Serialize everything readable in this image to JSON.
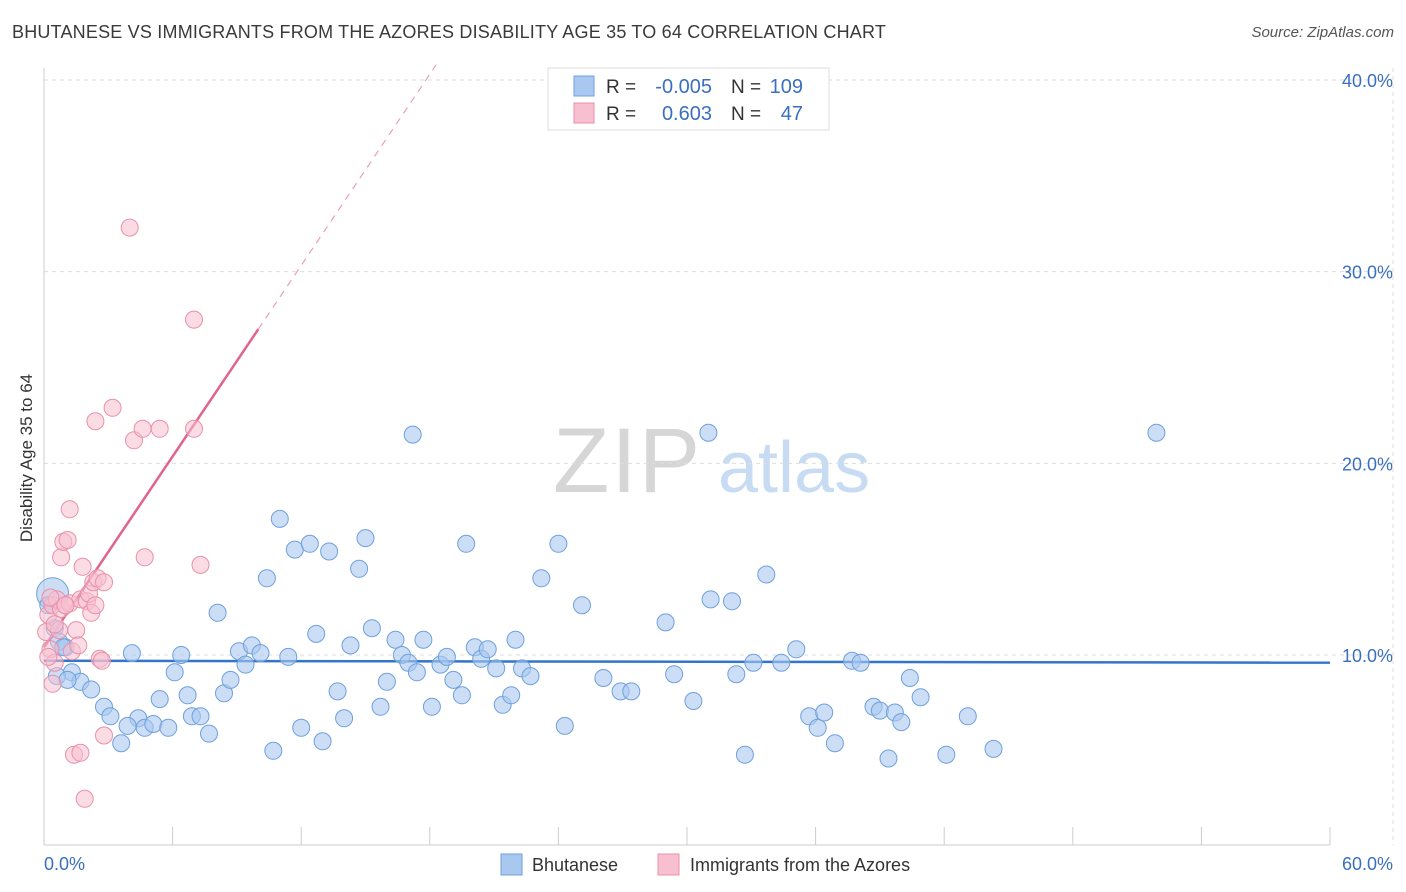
{
  "chart_data": {
    "type": "scatter",
    "title": "BHUTANESE VS IMMIGRANTS FROM THE AZORES DISABILITY AGE 35 TO 64 CORRELATION CHART",
    "source": "Source: ZipAtlas.com",
    "xlabel": "",
    "ylabel": "Disability Age 35 to 64",
    "xlim": [
      0,
      60
    ],
    "ylim": [
      0,
      42
    ],
    "x_tick_labels": [
      "0.0%",
      "60.0%"
    ],
    "y_ticks": [
      10,
      20,
      30,
      40
    ],
    "y_tick_labels": [
      "10.0%",
      "20.0%",
      "30.0%",
      "40.0%"
    ],
    "grid": true,
    "watermark": "ZIPatlas",
    "legend": {
      "position": "top-center",
      "rows": [
        {
          "r_label": "R =",
          "r_value": "-0.005",
          "n_label": "N =",
          "n_value": "109"
        },
        {
          "r_label": "R =",
          "r_value": "0.603",
          "n_label": "N =",
          "n_value": "47"
        }
      ]
    },
    "bottom_legend": [
      "Bhutanese",
      "Immigrants from the Azores"
    ],
    "colors": {
      "bhutanese_fill": "#a9c8f0",
      "bhutanese_stroke": "#6fa0dc",
      "bhutanese_line": "#3375c8",
      "azores_fill": "#f7bfd0",
      "azores_stroke": "#e890aa",
      "azores_line": "#e0648c",
      "tick_label": "#3a6fc0",
      "grid": "#dddddd"
    },
    "series": [
      {
        "name": "Bhutanese",
        "r": -0.005,
        "n": 109,
        "trend": {
          "x": [
            0,
            60
          ],
          "y": [
            9.7,
            9.6
          ]
        },
        "points": [
          [
            0.4,
            13.2
          ],
          [
            0.5,
            11.4
          ],
          [
            0.7,
            10.7
          ],
          [
            1.0,
            10.4
          ],
          [
            1.3,
            9.1
          ],
          [
            1.7,
            8.6
          ],
          [
            2.2,
            8.2
          ],
          [
            2.8,
            7.3
          ],
          [
            3.1,
            6.8
          ],
          [
            3.6,
            5.4
          ],
          [
            4.1,
            10.1
          ],
          [
            4.4,
            6.7
          ],
          [
            4.7,
            6.2
          ],
          [
            5.1,
            6.4
          ],
          [
            5.4,
            7.7
          ],
          [
            5.8,
            6.2
          ],
          [
            6.1,
            9.1
          ],
          [
            6.4,
            10.0
          ],
          [
            6.7,
            7.9
          ],
          [
            6.9,
            6.8
          ],
          [
            7.3,
            6.8
          ],
          [
            7.7,
            5.9
          ],
          [
            8.1,
            12.2
          ],
          [
            8.4,
            8.0
          ],
          [
            8.7,
            8.7
          ],
          [
            9.1,
            10.2
          ],
          [
            9.4,
            9.5
          ],
          [
            9.7,
            10.5
          ],
          [
            10.1,
            10.1
          ],
          [
            10.4,
            14.0
          ],
          [
            10.7,
            5.0
          ],
          [
            11.0,
            17.1
          ],
          [
            11.4,
            9.9
          ],
          [
            11.7,
            15.5
          ],
          [
            12.0,
            6.2
          ],
          [
            12.4,
            15.8
          ],
          [
            12.7,
            11.1
          ],
          [
            13.0,
            5.5
          ],
          [
            13.3,
            15.4
          ],
          [
            13.7,
            8.1
          ],
          [
            14.0,
            6.7
          ],
          [
            14.3,
            10.5
          ],
          [
            14.7,
            14.5
          ],
          [
            15.0,
            16.1
          ],
          [
            15.3,
            11.4
          ],
          [
            15.7,
            7.3
          ],
          [
            16.0,
            8.6
          ],
          [
            16.4,
            10.8
          ],
          [
            16.7,
            10.0
          ],
          [
            17.0,
            9.6
          ],
          [
            17.4,
            9.1
          ],
          [
            17.7,
            10.8
          ],
          [
            18.1,
            7.3
          ],
          [
            18.5,
            9.5
          ],
          [
            18.8,
            9.9
          ],
          [
            19.1,
            8.7
          ],
          [
            19.5,
            7.9
          ],
          [
            19.7,
            15.8
          ],
          [
            20.1,
            10.4
          ],
          [
            20.4,
            9.8
          ],
          [
            20.7,
            10.3
          ],
          [
            21.1,
            9.3
          ],
          [
            21.4,
            7.4
          ],
          [
            21.8,
            7.9
          ],
          [
            22.0,
            10.8
          ],
          [
            22.3,
            9.3
          ],
          [
            22.7,
            8.9
          ],
          [
            23.2,
            14.0
          ],
          [
            24.0,
            15.8
          ],
          [
            24.3,
            6.3
          ],
          [
            25.1,
            12.6
          ],
          [
            26.1,
            8.8
          ],
          [
            26.9,
            8.1
          ],
          [
            27.4,
            8.1
          ],
          [
            29.0,
            11.7
          ],
          [
            29.4,
            9.0
          ],
          [
            30.3,
            7.6
          ],
          [
            31.1,
            12.9
          ],
          [
            32.1,
            12.8
          ],
          [
            32.3,
            9.0
          ],
          [
            32.7,
            4.8
          ],
          [
            33.1,
            9.6
          ],
          [
            33.7,
            14.2
          ],
          [
            34.4,
            9.6
          ],
          [
            35.1,
            10.3
          ],
          [
            35.7,
            6.8
          ],
          [
            36.1,
            6.2
          ],
          [
            36.4,
            7.0
          ],
          [
            36.9,
            5.4
          ],
          [
            37.7,
            9.7
          ],
          [
            38.1,
            9.6
          ],
          [
            38.7,
            7.3
          ],
          [
            39.0,
            7.1
          ],
          [
            39.4,
            4.6
          ],
          [
            39.7,
            7.0
          ],
          [
            40.0,
            6.5
          ],
          [
            40.4,
            8.8
          ],
          [
            40.9,
            7.8
          ],
          [
            42.1,
            4.8
          ],
          [
            43.1,
            6.8
          ],
          [
            44.3,
            5.1
          ],
          [
            17.2,
            21.5
          ],
          [
            31.0,
            21.6
          ],
          [
            51.9,
            21.6
          ],
          [
            0.2,
            12.6
          ],
          [
            0.6,
            8.9
          ],
          [
            1.1,
            8.7
          ],
          [
            0.9,
            10.4
          ],
          [
            3.9,
            6.3
          ]
        ]
      },
      {
        "name": "Immigrants from the Azores",
        "r": 0.603,
        "n": 47,
        "trend": {
          "x": [
            0,
            10
          ],
          "y": [
            10.4,
            27.0
          ],
          "dash_extension": {
            "x": [
              10,
              18.3
            ],
            "y": [
              27.0,
              40.8
            ]
          }
        },
        "points": [
          [
            0.1,
            11.2
          ],
          [
            0.2,
            12.1
          ],
          [
            0.3,
            10.3
          ],
          [
            0.4,
            8.5
          ],
          [
            0.4,
            12.6
          ],
          [
            0.5,
            9.6
          ],
          [
            0.6,
            12.9
          ],
          [
            0.7,
            11.3
          ],
          [
            0.8,
            12.4
          ],
          [
            0.8,
            15.1
          ],
          [
            0.9,
            15.9
          ],
          [
            1.0,
            12.6
          ],
          [
            1.1,
            16.0
          ],
          [
            1.2,
            17.6
          ],
          [
            1.2,
            12.7
          ],
          [
            1.3,
            10.2
          ],
          [
            1.4,
            4.8
          ],
          [
            1.5,
            11.3
          ],
          [
            1.6,
            10.5
          ],
          [
            1.7,
            12.9
          ],
          [
            1.7,
            4.9
          ],
          [
            1.8,
            14.6
          ],
          [
            1.9,
            2.5
          ],
          [
            2.0,
            12.8
          ],
          [
            2.1,
            13.2
          ],
          [
            2.2,
            12.2
          ],
          [
            2.3,
            13.8
          ],
          [
            2.4,
            12.6
          ],
          [
            2.5,
            14.0
          ],
          [
            2.6,
            9.8
          ],
          [
            2.7,
            9.7
          ],
          [
            2.8,
            13.8
          ],
          [
            2.8,
            5.8
          ],
          [
            3.2,
            22.9
          ],
          [
            2.4,
            22.2
          ],
          [
            4.2,
            21.2
          ],
          [
            4.6,
            21.8
          ],
          [
            5.4,
            21.8
          ],
          [
            4.7,
            15.1
          ],
          [
            4.0,
            32.3
          ],
          [
            7.0,
            21.8
          ],
          [
            7.0,
            27.5
          ],
          [
            7.3,
            14.7
          ],
          [
            0.2,
            9.9
          ],
          [
            0.3,
            13.0
          ],
          [
            0.5,
            11.6
          ],
          [
            1.0,
            12.6
          ]
        ]
      }
    ]
  }
}
